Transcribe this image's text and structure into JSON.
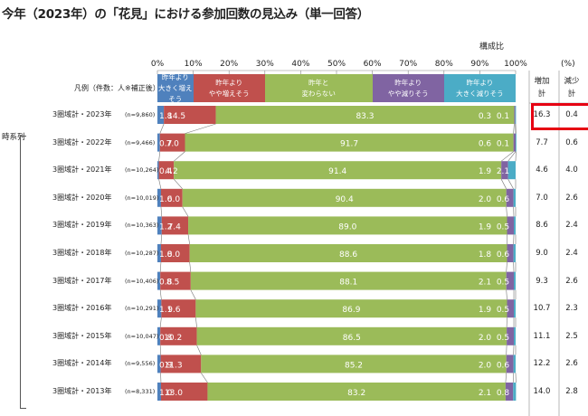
{
  "title": "今年（2023年）の「花見」における参加回数の見込み（単一回答）",
  "composition_label": "構成比",
  "unit_label": "(%)",
  "legend_title": "凡例（件数：人※補正後）",
  "legend": [
    {
      "label_line1": "昨年より",
      "label_line2": "大きく増えそう",
      "color": "#4f81bd"
    },
    {
      "label_line1": "昨年より",
      "label_line2": "やや増えそう",
      "color": "#c0504d"
    },
    {
      "label_line1": "昨年と",
      "label_line2": "変わらない",
      "color": "#9bbb59"
    },
    {
      "label_line1": "昨年より",
      "label_line2": "やや減りそう",
      "color": "#8064a2"
    },
    {
      "label_line1": "昨年より",
      "label_line2": "大きく減りそう",
      "color": "#4bacc6"
    }
  ],
  "side_headers": [
    {
      "line1": "増加",
      "line2": "計"
    },
    {
      "line1": "減少",
      "line2": "計"
    }
  ],
  "series_label": "時系列",
  "chart_data": {
    "type": "bar",
    "orientation": "horizontal-stacked-100",
    "title": "今年（2023年）の「花見」における参加回数の見込み（単一回答）",
    "xlim": [
      0,
      100
    ],
    "x_ticks": [
      "0%",
      "10%",
      "20%",
      "30%",
      "40%",
      "50%",
      "60%",
      "70%",
      "80%",
      "90%",
      "100%"
    ],
    "series_names": [
      "昨年より大きく増えそう",
      "昨年よりやや増えそう",
      "昨年と変わらない",
      "昨年よりやや減りそう",
      "昨年より大きく減りそう"
    ],
    "rows": [
      {
        "label": "3圏域計・2023年",
        "n": "(n=9,860)",
        "values": [
          1.8,
          14.5,
          83.3,
          0.3,
          0.1
        ],
        "increase_total": "16.3",
        "decrease_total": "0.4"
      },
      {
        "label": "3圏域計・2022年",
        "n": "(n=9,466)",
        "values": [
          0.7,
          7.0,
          91.7,
          0.6,
          0.1
        ],
        "increase_total": "7.7",
        "decrease_total": "0.6"
      },
      {
        "label": "3圏域計・2021年",
        "n": "(n=10,264)",
        "values": [
          0.4,
          4.2,
          91.4,
          1.9,
          2.1
        ],
        "increase_total": "4.6",
        "decrease_total": "4.0"
      },
      {
        "label": "3圏域計・2020年",
        "n": "(n=10,019)",
        "values": [
          1.0,
          6.0,
          90.4,
          2.0,
          0.6
        ],
        "increase_total": "7.0",
        "decrease_total": "2.6"
      },
      {
        "label": "3圏域計・2019年",
        "n": "(n=10,363)",
        "values": [
          1.2,
          7.4,
          89.0,
          1.9,
          0.5
        ],
        "increase_total": "8.6",
        "decrease_total": "2.4"
      },
      {
        "label": "3圏域計・2018年",
        "n": "(n=10,287)",
        "values": [
          1.0,
          8.0,
          88.6,
          1.8,
          0.6
        ],
        "increase_total": "9.0",
        "decrease_total": "2.4"
      },
      {
        "label": "3圏域計・2017年",
        "n": "(n=10,406)",
        "values": [
          0.8,
          8.5,
          88.1,
          2.1,
          0.5
        ],
        "increase_total": "9.3",
        "decrease_total": "2.6"
      },
      {
        "label": "3圏域計・2016年",
        "n": "(n=10,291)",
        "values": [
          1.1,
          9.6,
          86.9,
          1.9,
          0.5
        ],
        "increase_total": "10.7",
        "decrease_total": "2.3"
      },
      {
        "label": "3圏域計・2015年",
        "n": "(n=10,047)",
        "values": [
          0.8,
          10.2,
          86.5,
          2.0,
          0.5
        ],
        "increase_total": "11.1",
        "decrease_total": "2.5"
      },
      {
        "label": "3圏域計・2014年",
        "n": "(n=9,556)",
        "values": [
          0.9,
          11.3,
          85.2,
          2.0,
          0.6
        ],
        "increase_total": "12.2",
        "decrease_total": "2.6"
      },
      {
        "label": "3圏域計・2013年",
        "n": "(n=8,331)",
        "values": [
          1.0,
          13.0,
          83.2,
          2.1,
          0.8
        ],
        "increase_total": "14.0",
        "decrease_total": "2.8"
      }
    ],
    "highlight_row": 0,
    "colors": [
      "#4f81bd",
      "#c0504d",
      "#9bbb59",
      "#8064a2",
      "#4bacc6"
    ]
  }
}
